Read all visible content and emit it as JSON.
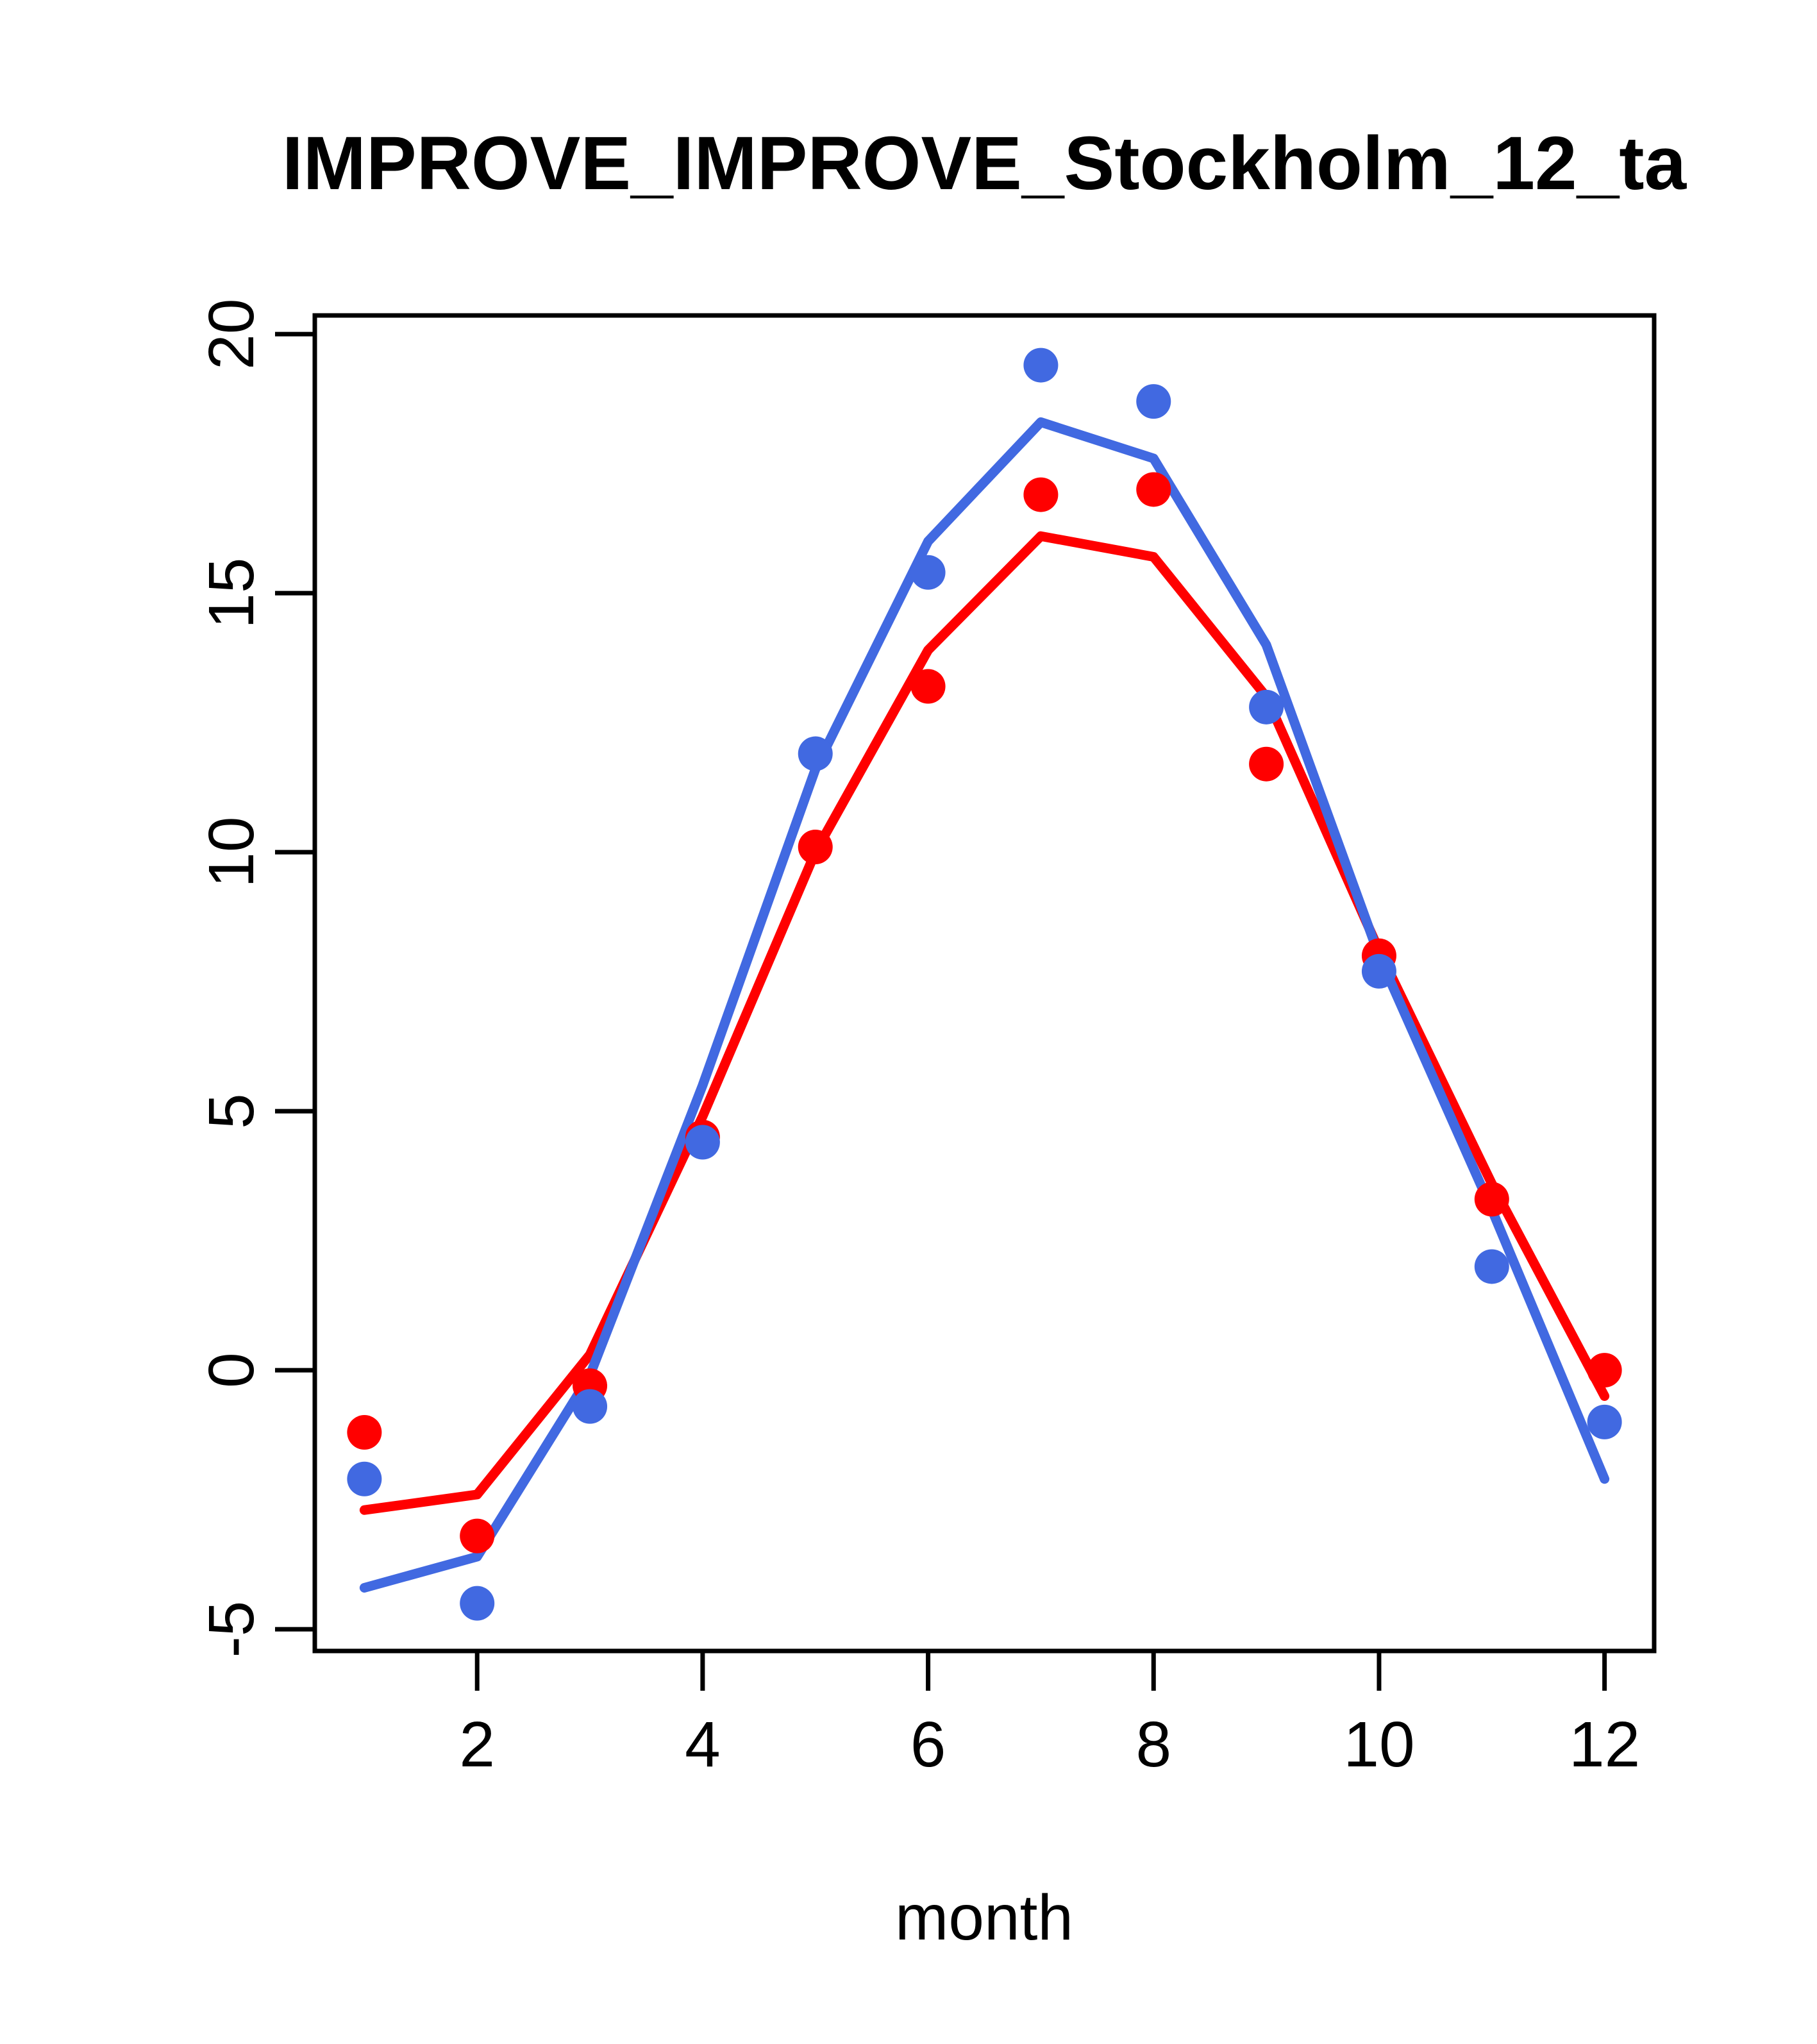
{
  "window": {
    "kind": "r-base-graphics-plot",
    "background": "#ffffff"
  },
  "chart_data": {
    "type": "line",
    "title": "IMPROVE_IMPROVE_Stockholm_12_ta",
    "xlabel": "month",
    "ylabel": "",
    "x": [
      1,
      2,
      3,
      4,
      5,
      6,
      7,
      8,
      9,
      10,
      11,
      12
    ],
    "xticks": [
      2,
      4,
      6,
      8,
      10,
      12
    ],
    "yticks": [
      20,
      15,
      10,
      5,
      0,
      -5
    ],
    "xlim": [
      0.56,
      12.44
    ],
    "ylim": [
      -5.42,
      20.36
    ],
    "grid": false,
    "legend": "none",
    "series": [
      {
        "name": "red-fit-line",
        "kind": "line",
        "color": "#FF0000",
        "values": [
          -2.7,
          -2.4,
          0.3,
          4.9,
          10.0,
          13.9,
          16.1,
          15.7,
          13.0,
          8.1,
          3.6,
          -0.5
        ]
      },
      {
        "name": "blue-fit-line",
        "kind": "line",
        "color": "#4169E1",
        "values": [
          -4.2,
          -3.6,
          -0.1,
          5.5,
          11.6,
          16.0,
          18.3,
          17.6,
          14.0,
          8.0,
          3.1,
          -2.1
        ]
      },
      {
        "name": "red-points",
        "kind": "points",
        "color": "#FF0000",
        "values": [
          -1.2,
          -3.2,
          -0.3,
          4.5,
          10.1,
          13.2,
          16.9,
          17.0,
          11.7,
          8.0,
          3.3,
          0.0
        ]
      },
      {
        "name": "blue-points",
        "kind": "points",
        "color": "#4169E1",
        "values": [
          -2.1,
          -4.5,
          -0.7,
          4.4,
          11.9,
          15.4,
          19.4,
          18.7,
          12.8,
          7.7,
          2.0,
          -1.0
        ]
      }
    ],
    "axis_color": "#000000"
  }
}
